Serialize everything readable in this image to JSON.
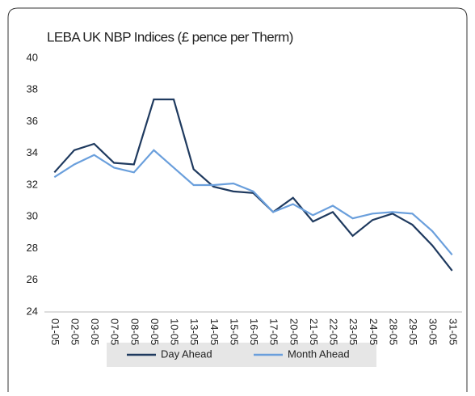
{
  "chart_data": {
    "type": "line",
    "title": "LEBA UK NBP Indices (£ pence per Therm)",
    "categories": [
      "01-05",
      "02-05",
      "03-05",
      "07-05",
      "08-05",
      "09-05",
      "10-05",
      "13-05",
      "14-05",
      "15-05",
      "16-05",
      "17-05",
      "20-05",
      "21-05",
      "22-05",
      "23-05",
      "24-05",
      "28-05",
      "29-05",
      "30-05",
      "31-05"
    ],
    "series": [
      {
        "name": "Day Ahead",
        "color": "#1f3a5f",
        "values": [
          32.8,
          34.2,
          34.6,
          33.4,
          33.3,
          37.4,
          37.4,
          33.0,
          31.9,
          31.6,
          31.5,
          30.3,
          31.2,
          29.7,
          30.3,
          28.8,
          29.8,
          30.2,
          29.5,
          28.2,
          26.6
        ]
      },
      {
        "name": "Month Ahead",
        "color": "#6a9fdc",
        "values": [
          32.5,
          33.3,
          33.9,
          33.1,
          32.8,
          34.2,
          33.1,
          32.0,
          32.0,
          32.1,
          31.6,
          30.3,
          30.8,
          30.1,
          30.7,
          29.9,
          30.2,
          30.3,
          30.2,
          29.1,
          27.6
        ]
      }
    ],
    "ylim": [
      24,
      40
    ],
    "yticks": [
      24,
      26,
      28,
      30,
      32,
      34,
      36,
      38,
      40
    ],
    "grid": false,
    "legend": "bottom"
  }
}
